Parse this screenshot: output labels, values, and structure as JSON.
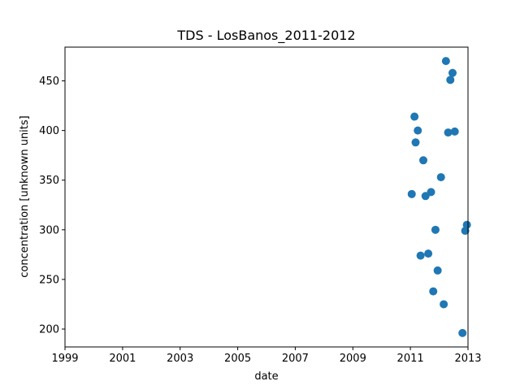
{
  "chart_data": {
    "type": "scatter",
    "title": "TDS - LosBanos_2011-2012",
    "xlabel": "date",
    "ylabel": "concentration [unknown units]",
    "xlim": [
      "1999-01-01",
      "2013-01-01"
    ],
    "ylim": [
      182,
      484
    ],
    "xticks": [
      "1999",
      "2001",
      "2003",
      "2005",
      "2007",
      "2009",
      "2011",
      "2013"
    ],
    "yticks": [
      200,
      250,
      300,
      350,
      400,
      450
    ],
    "grid": false,
    "series": [
      {
        "color": "#1f77b4",
        "points": [
          {
            "x": "2011-01-18",
            "y": 336
          },
          {
            "x": "2011-02-22",
            "y": 414
          },
          {
            "x": "2011-03-08",
            "y": 388
          },
          {
            "x": "2011-04-05",
            "y": 400
          },
          {
            "x": "2011-05-10",
            "y": 274
          },
          {
            "x": "2011-06-14",
            "y": 370
          },
          {
            "x": "2011-07-12",
            "y": 334
          },
          {
            "x": "2011-08-16",
            "y": 276
          },
          {
            "x": "2011-09-20",
            "y": 338
          },
          {
            "x": "2011-10-18",
            "y": 238
          },
          {
            "x": "2011-11-15",
            "y": 300
          },
          {
            "x": "2011-12-13",
            "y": 259
          },
          {
            "x": "2012-01-24",
            "y": 353
          },
          {
            "x": "2012-02-28",
            "y": 225
          },
          {
            "x": "2012-03-27",
            "y": 470
          },
          {
            "x": "2012-04-24",
            "y": 398
          },
          {
            "x": "2012-05-22",
            "y": 451
          },
          {
            "x": "2012-06-19",
            "y": 458
          },
          {
            "x": "2012-07-17",
            "y": 399
          },
          {
            "x": "2012-10-23",
            "y": 196
          },
          {
            "x": "2012-11-27",
            "y": 299
          },
          {
            "x": "2012-12-18",
            "y": 305
          }
        ]
      }
    ]
  }
}
